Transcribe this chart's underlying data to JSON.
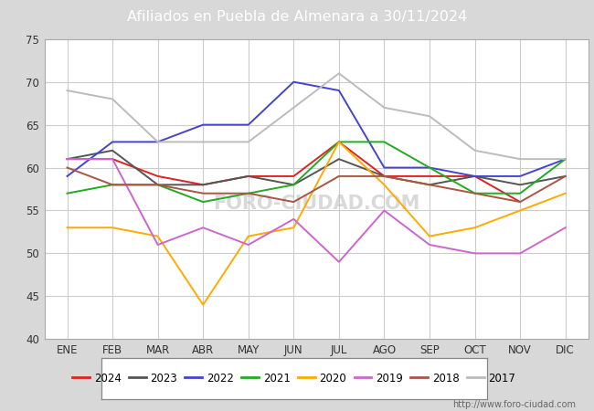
{
  "title": "Afiliados en Puebla de Almenara a 30/11/2024",
  "title_color": "#ffffff",
  "title_bg_color": "#4d7fcc",
  "months": [
    "ENE",
    "FEB",
    "MAR",
    "ABR",
    "MAY",
    "JUN",
    "JUL",
    "AGO",
    "SEP",
    "OCT",
    "NOV",
    "DIC"
  ],
  "ylim": [
    40,
    75
  ],
  "yticks": [
    40,
    45,
    50,
    55,
    60,
    65,
    70,
    75
  ],
  "series_order": [
    "2024",
    "2023",
    "2022",
    "2021",
    "2020",
    "2019",
    "2018",
    "2017"
  ],
  "series": {
    "2024": {
      "color": "#dd2222",
      "data": [
        61,
        61,
        59,
        58,
        59,
        59,
        63,
        59,
        59,
        59,
        56,
        null
      ]
    },
    "2023": {
      "color": "#555555",
      "data": [
        61,
        62,
        58,
        58,
        59,
        58,
        61,
        59,
        58,
        59,
        58,
        59
      ]
    },
    "2022": {
      "color": "#4444cc",
      "data": [
        59,
        63,
        63,
        65,
        65,
        70,
        69,
        60,
        60,
        59,
        59,
        61
      ]
    },
    "2021": {
      "color": "#22aa22",
      "data": [
        57,
        58,
        58,
        56,
        57,
        58,
        63,
        63,
        60,
        57,
        57,
        61
      ]
    },
    "2020": {
      "color": "#ffaa00",
      "data": [
        53,
        53,
        52,
        44,
        52,
        53,
        63,
        58,
        52,
        53,
        55,
        57
      ]
    },
    "2019": {
      "color": "#cc66cc",
      "data": [
        61,
        61,
        51,
        53,
        51,
        54,
        49,
        55,
        51,
        50,
        50,
        53
      ]
    },
    "2018": {
      "color": "#aa5544",
      "data": [
        60,
        58,
        58,
        57,
        57,
        56,
        59,
        59,
        58,
        57,
        56,
        59
      ]
    },
    "2017": {
      "color": "#bbbbbb",
      "data": [
        69,
        68,
        63,
        63,
        63,
        67,
        71,
        67,
        66,
        62,
        61,
        61
      ]
    }
  },
  "watermark": "FORO-CIUDAD.COM",
  "url": "http://www.foro-ciudad.com",
  "outer_bg": "#d8d8d8",
  "plot_bg": "#e8e8e8",
  "inner_plot_bg": "#ffffff",
  "grid_color": "#cccccc"
}
